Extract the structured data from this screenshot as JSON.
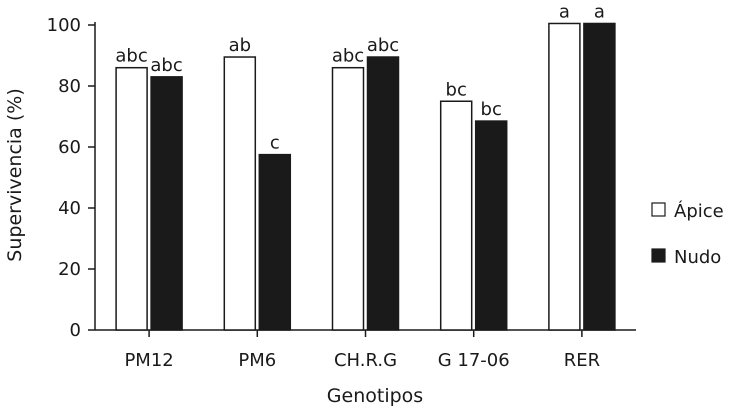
{
  "chart_data": {
    "type": "bar",
    "title": "",
    "xlabel": "Genotipos",
    "ylabel": "Supervivencia (%)",
    "ylim": [
      0,
      100
    ],
    "yticks": [
      "0",
      "20",
      "40",
      "60",
      "80",
      "100"
    ],
    "categories": [
      "PM12",
      "PM6",
      "CH.R.G",
      "G 17-06",
      "RER"
    ],
    "series": [
      {
        "name": "Ápice",
        "color": "#ffffff",
        "values": [
          86,
          89.5,
          86,
          75,
          100.5
        ],
        "labels": [
          "abc",
          "ab",
          "abc",
          "bc",
          "a"
        ]
      },
      {
        "name": "Nudo",
        "color": "#1a1a1a",
        "values": [
          83,
          57.5,
          89.5,
          68.5,
          100.5
        ],
        "labels": [
          "abc",
          "c",
          "abc",
          "bc",
          "a"
        ]
      }
    ],
    "legend_position": "right"
  }
}
